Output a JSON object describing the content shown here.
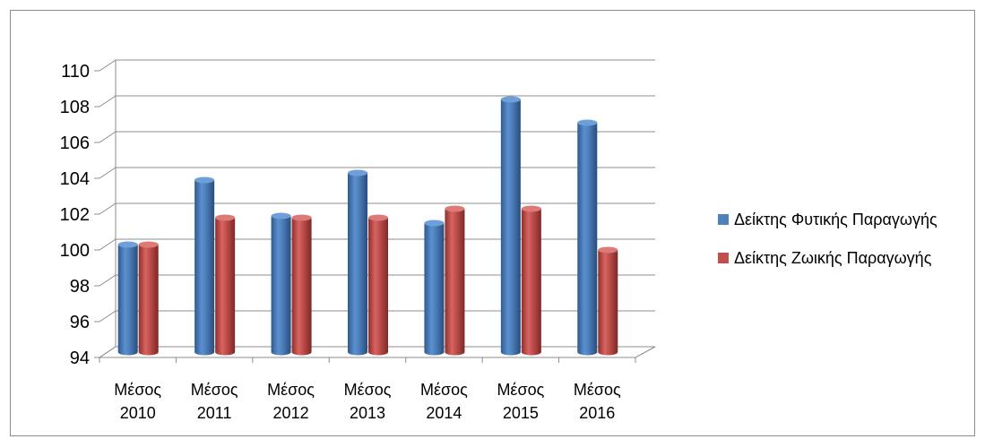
{
  "chart_data": {
    "type": "bar",
    "style": "3d-cylinder",
    "categories": [
      [
        "Μέσος",
        "2010"
      ],
      [
        "Μέσος",
        "2011"
      ],
      [
        "Μέσος",
        "2012"
      ],
      [
        "Μέσος",
        "2013"
      ],
      [
        "Μέσος",
        "2014"
      ],
      [
        "Μέσος",
        "2015"
      ],
      [
        "Μέσος",
        "2016"
      ]
    ],
    "series": [
      {
        "name": "Δείκτης Φυτικής Παραγωγής",
        "color": "#4f81bd",
        "values": [
          100.0,
          103.6,
          101.6,
          104.0,
          101.2,
          108.1,
          106.8
        ]
      },
      {
        "name": "Δείκτης Ζωικής Παραγωγής",
        "color": "#c0504d",
        "values": [
          100.0,
          101.5,
          101.5,
          101.5,
          102.0,
          102.0,
          99.7
        ]
      }
    ],
    "yticks": [
      "94",
      "96",
      "98",
      "100",
      "102",
      "104",
      "106",
      "108",
      "110"
    ],
    "ylim": [
      94,
      110
    ],
    "grid": true,
    "legend": "right"
  }
}
